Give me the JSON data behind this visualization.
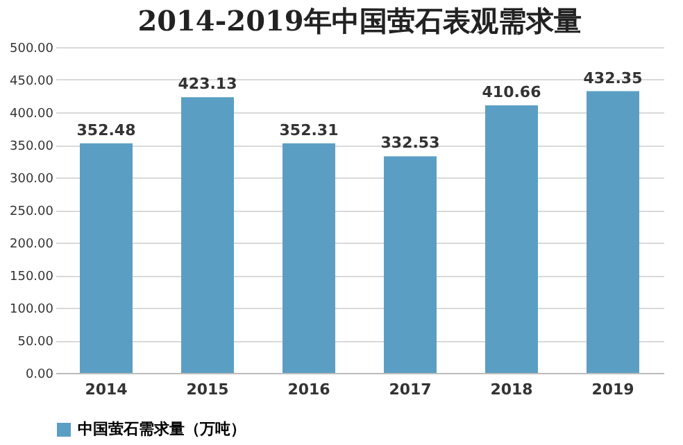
{
  "chart_data": {
    "type": "bar",
    "title": "2014-2019年中国萤石表观需求量",
    "categories": [
      "2014",
      "2015",
      "2016",
      "2017",
      "2018",
      "2019"
    ],
    "series": [
      {
        "name": "中国萤石需求量（万吨）",
        "color": "#5b9ec4",
        "values": [
          352.48,
          423.13,
          352.31,
          332.53,
          410.66,
          432.35
        ]
      }
    ],
    "ylim": [
      0,
      500
    ],
    "yticks": [
      {
        "value": 0,
        "label": "0.00"
      },
      {
        "value": 50,
        "label": "50.00"
      },
      {
        "value": 100,
        "label": "100.00"
      },
      {
        "value": 150,
        "label": "150.00"
      },
      {
        "value": 200,
        "label": "200.00"
      },
      {
        "value": 250,
        "label": "250.00"
      },
      {
        "value": 300,
        "label": "300.00"
      },
      {
        "value": 350,
        "label": "350.00"
      },
      {
        "value": 400,
        "label": "400.00"
      },
      {
        "value": 450,
        "label": "450.00"
      },
      {
        "value": 500,
        "label": "500.00"
      }
    ],
    "grid": "y",
    "legend": "bottom",
    "data_labels": true
  }
}
